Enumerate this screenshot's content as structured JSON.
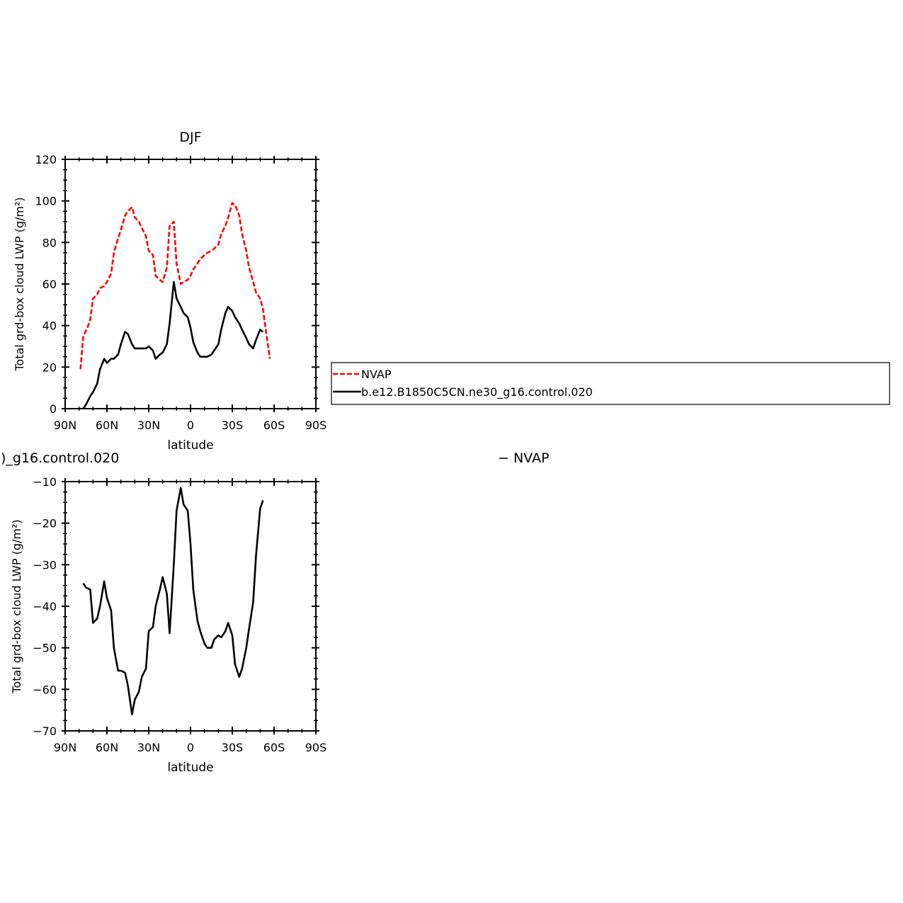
{
  "chart_data": [
    {
      "type": "line",
      "title": "DJF",
      "xlabel": "latitude",
      "ylabel": "Total grd-box cloud LWP (g/m²)",
      "xlim": [
        -90,
        90
      ],
      "ylim": [
        0,
        120
      ],
      "xticks": [
        -90,
        -60,
        -30,
        0,
        30,
        60,
        90
      ],
      "xtick_labels": [
        "90N",
        "60N",
        "30N",
        "0",
        "30S",
        "60S",
        "90S"
      ],
      "yticks": [
        0,
        20,
        40,
        60,
        80,
        100,
        120
      ],
      "ytick_labels": [
        "0",
        "20",
        "40",
        "60",
        "80",
        "100",
        "120"
      ],
      "legend": {
        "placement": "right",
        "entries": [
          "NVAP",
          "b.e12.B1850C5CN.ne30_g16.control.020"
        ]
      },
      "series": [
        {
          "name": "NVAP",
          "color": "#ff0000",
          "dash": true,
          "x": [
            -79,
            -77,
            -74,
            -72,
            -70,
            -67,
            -65,
            -62,
            -60,
            -57,
            -55,
            -52,
            -50,
            -47,
            -45,
            -42,
            -40,
            -37,
            -35,
            -32,
            -30,
            -27,
            -25,
            -22,
            -20,
            -17,
            -15,
            -12,
            -10,
            -7,
            -5,
            -2,
            0,
            2,
            5,
            7,
            10,
            12,
            15,
            17,
            20,
            22,
            25,
            27,
            30,
            32,
            35,
            37,
            40,
            42,
            45,
            47,
            50,
            52,
            55,
            57,
            60,
            62,
            65,
            67,
            70,
            72,
            75,
            77
          ],
          "y": [
            19,
            35,
            39,
            43,
            53,
            55,
            58,
            59,
            61,
            65,
            75,
            82,
            86,
            93,
            95,
            97,
            92,
            90,
            87,
            83,
            76,
            74,
            64,
            62,
            61,
            68,
            88,
            90,
            70,
            60,
            61,
            62,
            64,
            67,
            70,
            72,
            74,
            75,
            76,
            77,
            79,
            84,
            88,
            92,
            99,
            98,
            93,
            84,
            76,
            68,
            61,
            56,
            53,
            48,
            33,
            24,
            null,
            null,
            null,
            null,
            null,
            null,
            null,
            null
          ]
        },
        {
          "name": "b.e12.B1850C5CN.ne30_g16.control.020",
          "color": "#000000",
          "dash": false,
          "x": [
            -77,
            -75,
            -72,
            -70,
            -67,
            -65,
            -62,
            -60,
            -57,
            -55,
            -52,
            -50,
            -47,
            -45,
            -42,
            -40,
            -37,
            -35,
            -32,
            -30,
            -27,
            -25,
            -22,
            -20,
            -17,
            -15,
            -12,
            -10,
            -7,
            -5,
            -2,
            0,
            2,
            5,
            7,
            10,
            12,
            15,
            17,
            20,
            22,
            25,
            27,
            30,
            32,
            35,
            37,
            40,
            42,
            45,
            47,
            50,
            52,
            55,
            57,
            60,
            62,
            65,
            67
          ],
          "y": [
            0,
            2,
            6,
            8,
            12,
            19,
            24,
            22,
            24,
            24,
            26,
            31,
            37,
            36,
            31,
            29,
            29,
            29,
            29,
            30,
            28,
            24,
            26,
            27,
            31,
            41,
            61,
            53,
            49,
            46,
            44,
            39,
            32,
            27,
            25,
            25,
            25,
            26,
            28,
            31,
            38,
            46,
            49,
            47,
            44,
            41,
            38,
            34,
            31,
            29,
            33,
            38,
            37,
            null,
            null,
            null,
            null,
            null,
            null
          ]
        }
      ]
    },
    {
      "type": "line",
      "title_left": ")_g16.control.020",
      "title_right": "−  NVAP",
      "xlabel": "latitude",
      "ylabel": "Total grd-box cloud LWP (g/m²)",
      "xlim": [
        -90,
        90
      ],
      "ylim": [
        -70,
        -10
      ],
      "xticks": [
        -90,
        -60,
        -30,
        0,
        30,
        60,
        90
      ],
      "xtick_labels": [
        "90N",
        "60N",
        "30N",
        "0",
        "30S",
        "60S",
        "90S"
      ],
      "yticks": [
        -70,
        -60,
        -50,
        -40,
        -30,
        -20,
        -10
      ],
      "ytick_labels": [
        "−70",
        "−60",
        "−50",
        "−40",
        "−30",
        "−20",
        "−10"
      ],
      "series": [
        {
          "color": "#000000",
          "x": [
            -77,
            -75,
            -72,
            -70,
            -67,
            -65,
            -62,
            -60,
            -57,
            -55,
            -52,
            -50,
            -47,
            -45,
            -42,
            -40,
            -37,
            -35,
            -32,
            -30,
            -27,
            -25,
            -22,
            -20,
            -17,
            -15,
            -12,
            -10,
            -7,
            -5,
            -2,
            0,
            2,
            5,
            7,
            10,
            12,
            15,
            17,
            20,
            22,
            25,
            27,
            30,
            32,
            35,
            37,
            40,
            42,
            45,
            47,
            50,
            52,
            55,
            57,
            60,
            62,
            65,
            67
          ],
          "y": [
            -34.5,
            -35.5,
            -36,
            -44,
            -43,
            -40,
            -34,
            -38,
            -41,
            -50,
            -55.5,
            -55.5,
            -56,
            -59,
            -66,
            -62.5,
            -60.5,
            -57,
            -55,
            -46,
            -45,
            -40,
            -36,
            -33,
            -37,
            -46.5,
            -30,
            -17,
            -11.5,
            -15.5,
            -17,
            -25,
            -36,
            -43.5,
            -46,
            -49,
            -50,
            -50,
            -48,
            -47,
            -47.5,
            -46,
            -44,
            -47,
            -54,
            -57,
            -55,
            -50,
            -45.5,
            -39,
            -28,
            -16.5,
            -14.5,
            null,
            null,
            null,
            null,
            null,
            null
          ]
        }
      ]
    }
  ]
}
